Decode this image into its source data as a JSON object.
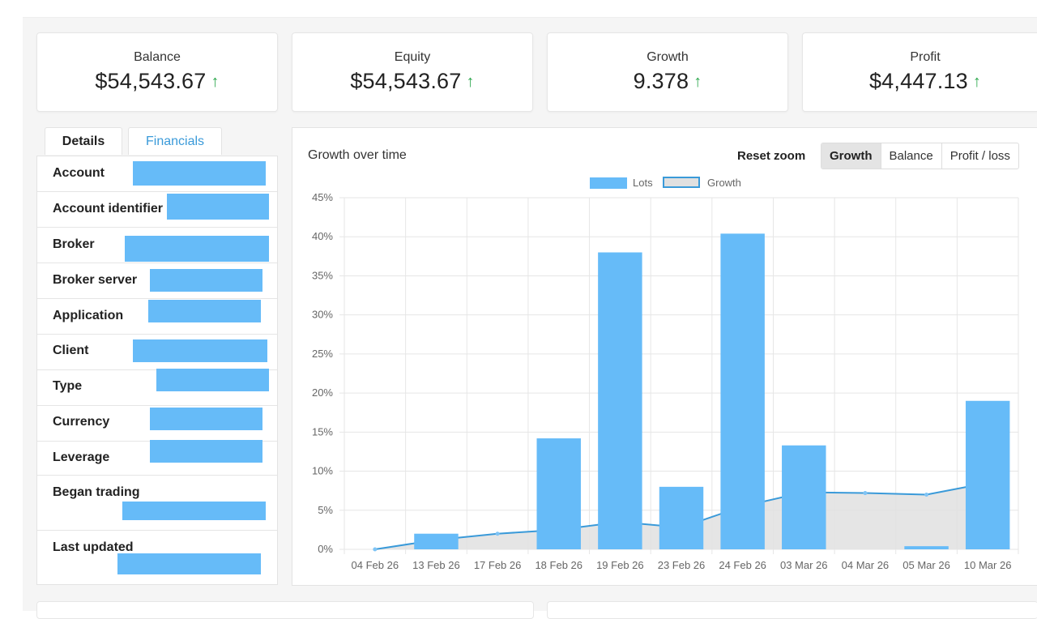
{
  "stats": [
    {
      "label": "Balance",
      "value": "$54,543.67",
      "trend": "↑"
    },
    {
      "label": "Equity",
      "value": "$54,543.67",
      "trend": "↑"
    },
    {
      "label": "Growth",
      "value": "9.378",
      "trend": "↑"
    },
    {
      "label": "Profit",
      "value": "$4,447.13",
      "trend": "↑"
    }
  ],
  "tabs": {
    "details": "Details",
    "financials": "Financials"
  },
  "details": [
    {
      "label": "Account"
    },
    {
      "label": "Account identifier"
    },
    {
      "label": "Broker"
    },
    {
      "label": "Broker server"
    },
    {
      "label": "Application"
    },
    {
      "label": "Client"
    },
    {
      "label": "Type"
    },
    {
      "label": "Currency"
    },
    {
      "label": "Leverage"
    },
    {
      "label": "Began trading"
    },
    {
      "label": "Last updated"
    }
  ],
  "chart": {
    "title": "Growth over time",
    "reset_zoom": "Reset zoom",
    "modes": [
      "Growth",
      "Balance",
      "Profit / loss"
    ],
    "active_mode": "Growth",
    "legend": {
      "lots": "Lots",
      "growth": "Growth"
    }
  },
  "colors": {
    "bar": "#66bbf8",
    "line": "#3a9ad9",
    "area": "#e0e0e0",
    "trend_up": "#2fa84f"
  },
  "chart_data": {
    "type": "bar",
    "title": "Growth over time",
    "categories": [
      "04 Feb 26",
      "13 Feb 26",
      "17 Feb 26",
      "18 Feb 26",
      "19 Feb 26",
      "23 Feb 26",
      "24 Feb 26",
      "03 Mar 26",
      "04 Mar 26",
      "05 Mar 26",
      "10 Mar 26"
    ],
    "series": [
      {
        "name": "Lots",
        "type": "bar",
        "values": [
          0,
          2,
          0,
          14.2,
          38,
          8,
          40.4,
          13.3,
          0,
          0.4,
          19
        ]
      },
      {
        "name": "Growth",
        "type": "area",
        "values": [
          0,
          1.2,
          2,
          2.5,
          3.5,
          2.8,
          5.5,
          7.3,
          7.2,
          7.0,
          8.5
        ]
      }
    ],
    "ylabel": "",
    "xlabel": "",
    "ylim": [
      0,
      45
    ],
    "yticks": [
      "0%",
      "5%",
      "10%",
      "15%",
      "20%",
      "25%",
      "30%",
      "35%",
      "40%",
      "45%"
    ],
    "grid": true,
    "legend_position": "top-center"
  }
}
